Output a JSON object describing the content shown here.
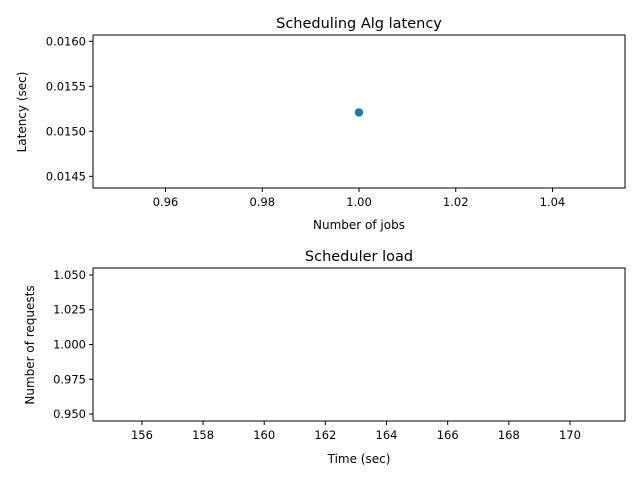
{
  "chart_data": [
    {
      "type": "scatter",
      "title": "Scheduling Alg latency",
      "xlabel": "Number of jobs",
      "ylabel": "Latency (sec)",
      "xlim": [
        0.945,
        1.055
      ],
      "ylim": [
        0.01437,
        0.01607
      ],
      "xticks": [
        0.96,
        0.98,
        1.0,
        1.02,
        1.04
      ],
      "xtick_labels": [
        "0.96",
        "0.98",
        "1.00",
        "1.02",
        "1.04"
      ],
      "yticks": [
        0.0145,
        0.015,
        0.0155,
        0.016
      ],
      "ytick_labels": [
        "0.0145",
        "0.0150",
        "0.0155",
        "0.0160"
      ],
      "grid": false,
      "series": [
        {
          "points": [
            {
              "x": 1.0,
              "y": 0.01521
            }
          ],
          "color": "#1f77b4"
        }
      ]
    },
    {
      "type": "line",
      "title": "Scheduler load",
      "xlabel": "Time (sec)",
      "ylabel": "Number of requests",
      "xlim": [
        154.4,
        171.8
      ],
      "ylim": [
        0.945,
        1.055
      ],
      "xticks": [
        156,
        158,
        160,
        162,
        164,
        166,
        168,
        170
      ],
      "xtick_labels": [
        "156",
        "158",
        "160",
        "162",
        "164",
        "166",
        "168",
        "170"
      ],
      "yticks": [
        0.95,
        0.975,
        1.0,
        1.025,
        1.05
      ],
      "ytick_labels": [
        "0.950",
        "0.975",
        "1.000",
        "1.025",
        "1.050"
      ],
      "grid": false,
      "series": []
    }
  ]
}
